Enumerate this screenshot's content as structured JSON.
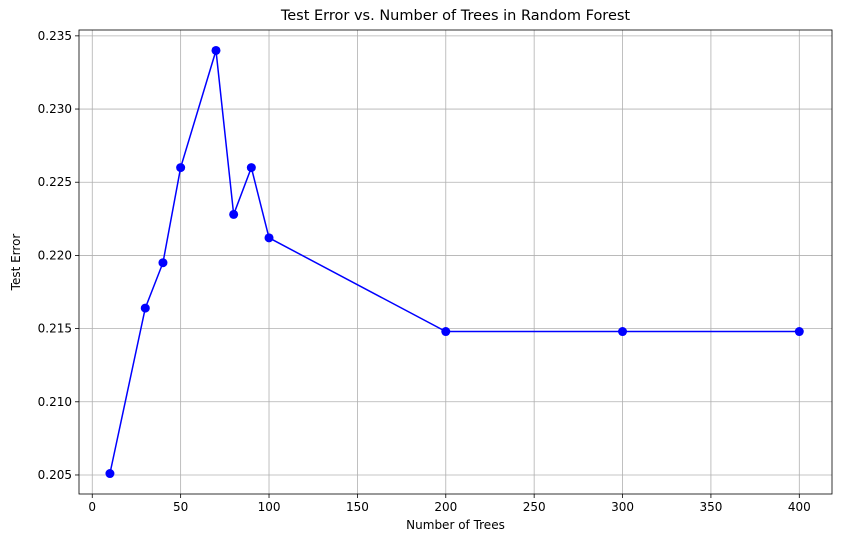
{
  "chart_data": {
    "type": "line",
    "title": "Test Error vs. Number of Trees in Random Forest",
    "xlabel": "Number of Trees",
    "ylabel": "Test Error",
    "xlim": [
      -7.5,
      418.5
    ],
    "ylim": [
      0.2037,
      0.2354
    ],
    "grid": true,
    "line_color": "#0000ff",
    "marker": "circle",
    "xticks": [
      0,
      50,
      100,
      150,
      200,
      250,
      300,
      350,
      400
    ],
    "xtick_labels": [
      "0",
      "50",
      "100",
      "150",
      "200",
      "250",
      "300",
      "350",
      "400"
    ],
    "yticks": [
      0.205,
      0.21,
      0.215,
      0.22,
      0.225,
      0.23,
      0.235
    ],
    "ytick_labels": [
      "0.205",
      "0.210",
      "0.215",
      "0.220",
      "0.225",
      "0.230",
      "0.235"
    ],
    "series": [
      {
        "x": [
          10,
          30,
          40,
          50,
          70,
          80,
          90,
          100,
          200,
          300,
          400
        ],
        "y": [
          0.2051,
          0.2164,
          0.2195,
          0.226,
          0.234,
          0.2228,
          0.226,
          0.2212,
          0.2148,
          0.2148,
          0.2148
        ]
      }
    ]
  }
}
